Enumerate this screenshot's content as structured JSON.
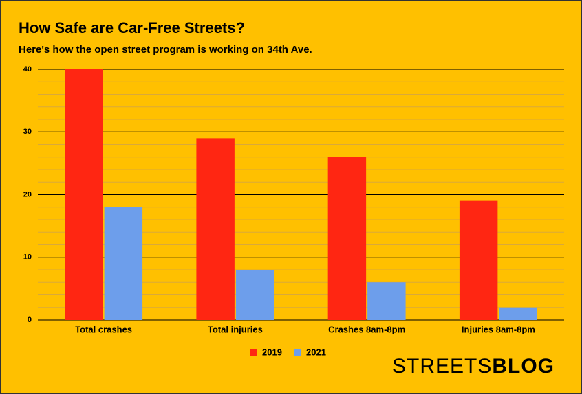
{
  "chart_data": {
    "type": "bar",
    "title": "How Safe are Car-Free Streets?",
    "subtitle": "Here's how the open street program is working on 34th Ave.",
    "categories": [
      "Total crashes",
      "Total injuries",
      "Crashes 8am-8pm",
      "Injuries 8am-8pm"
    ],
    "series": [
      {
        "name": "2019",
        "color": "#ff2612",
        "values": [
          40,
          29,
          26,
          19
        ]
      },
      {
        "name": "2021",
        "color": "#6d9eeb",
        "values": [
          18,
          8,
          6,
          2
        ]
      }
    ],
    "ylim": [
      0,
      40
    ],
    "yticks": [
      0,
      10,
      20,
      30,
      40
    ],
    "minor_yticks": [
      2,
      4,
      6,
      8,
      12,
      14,
      16,
      18,
      22,
      24,
      26,
      28,
      32,
      34,
      36,
      38
    ],
    "grid": true,
    "legend": "bottom"
  },
  "logo": {
    "regular": "STREETS",
    "bold": "BLOG"
  }
}
